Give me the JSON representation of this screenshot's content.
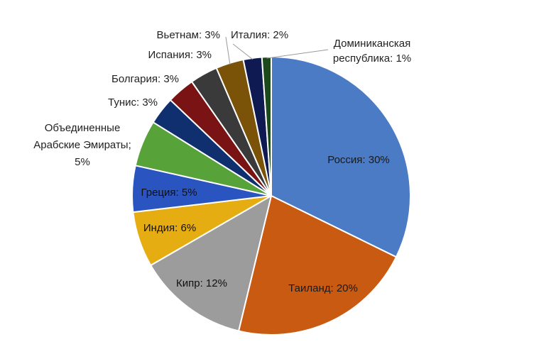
{
  "chart_data": {
    "type": "pie",
    "title": "",
    "slices": [
      {
        "label": "Россия",
        "value": 30,
        "text": "Россия: 30%",
        "color": "#4a7bc4"
      },
      {
        "label": "Таиланд",
        "value": 20,
        "text": "Таиланд: 20%",
        "color": "#c85a12"
      },
      {
        "label": "Кипр",
        "value": 12,
        "text": "Кипр: 12%",
        "color": "#9c9c9c"
      },
      {
        "label": "Индия",
        "value": 6,
        "text": "Индия: 6%",
        "color": "#e6ad12"
      },
      {
        "label": "Греция",
        "value": 5,
        "text": "Греция: 5%",
        "color": "#2a55c0"
      },
      {
        "label": "Объединенные Арабские Эмираты",
        "value": 5,
        "text_lines": [
          "Объединенные",
          "Арабские Эмираты;",
          "5%"
        ],
        "color": "#57a33a"
      },
      {
        "label": "Тунис",
        "value": 3,
        "text": "Тунис: 3%",
        "color": "#0f2f6e"
      },
      {
        "label": "Болгария",
        "value": 3,
        "text": "Болгария: 3%",
        "color": "#7a1414"
      },
      {
        "label": "Испания",
        "value": 3,
        "text": "Испания: 3%",
        "color": "#3a3a3a"
      },
      {
        "label": "Вьетнам",
        "value": 3,
        "text": "Вьетнам: 3%",
        "color": "#7a5208"
      },
      {
        "label": "Италия",
        "value": 2,
        "text": "Италия: 2%",
        "color": "#101a52"
      },
      {
        "label": "Доминиканская республика",
        "value": 1,
        "text_lines": [
          "Доминиканская",
          "республика: 1%"
        ],
        "color": "#1c4a1c"
      }
    ]
  }
}
